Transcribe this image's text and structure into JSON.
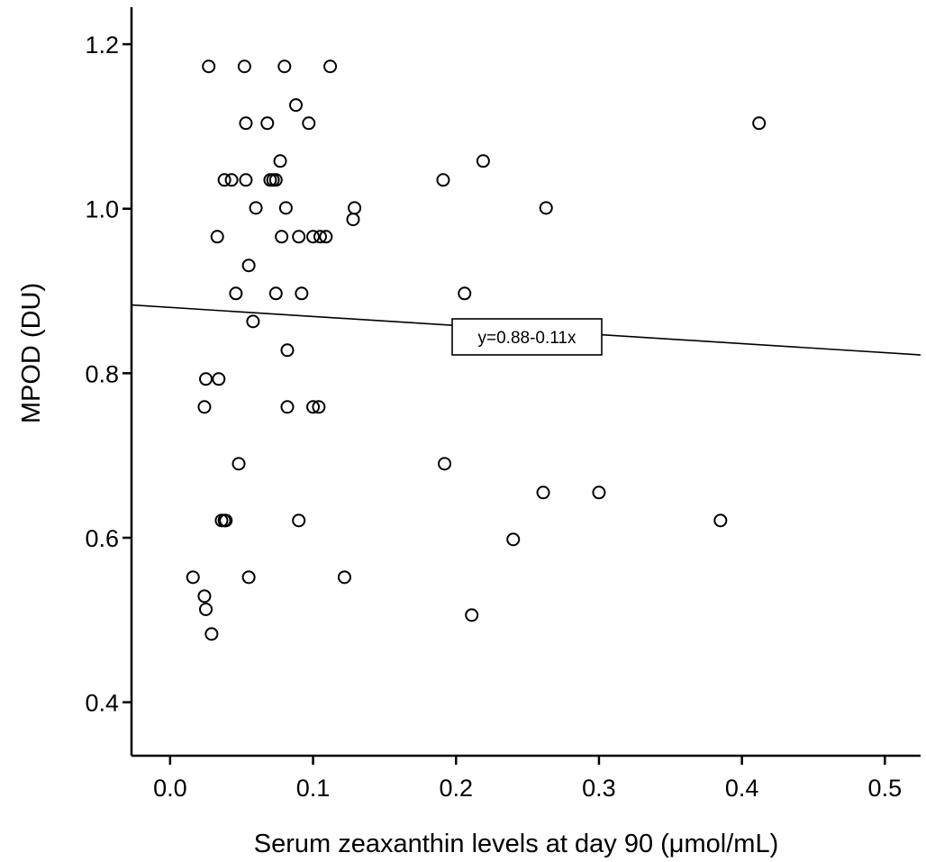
{
  "chart_data": {
    "type": "scatter",
    "title": "",
    "xlabel": "Serum zeaxanthin levels at day 90 (μmol/mL)",
    "ylabel": "MPOD (DU)",
    "xlim": [
      -0.027,
      0.525
    ],
    "ylim": [
      0.335,
      1.245
    ],
    "xticks": [
      0.0,
      0.1,
      0.2,
      0.3,
      0.4,
      0.5
    ],
    "xtick_labels": [
      "0.0",
      "0.1",
      "0.2",
      "0.3",
      "0.4",
      "0.5"
    ],
    "yticks": [
      0.4,
      0.6,
      0.8,
      1.0,
      1.2
    ],
    "ytick_labels": [
      "0.4",
      "0.6",
      "0.8",
      "1.0",
      "1.2"
    ],
    "grid": false,
    "legend": "none",
    "regression": {
      "label": "y=0.88-0.11x",
      "intercept": 0.88,
      "slope": -0.11
    },
    "points": [
      {
        "x": 0.027,
        "y": 1.173
      },
      {
        "x": 0.052,
        "y": 1.173
      },
      {
        "x": 0.08,
        "y": 1.173
      },
      {
        "x": 0.112,
        "y": 1.173
      },
      {
        "x": 0.088,
        "y": 1.126
      },
      {
        "x": 0.053,
        "y": 1.104
      },
      {
        "x": 0.068,
        "y": 1.104
      },
      {
        "x": 0.097,
        "y": 1.104
      },
      {
        "x": 0.412,
        "y": 1.104
      },
      {
        "x": 0.077,
        "y": 1.058
      },
      {
        "x": 0.219,
        "y": 1.058
      },
      {
        "x": 0.038,
        "y": 1.035
      },
      {
        "x": 0.043,
        "y": 1.035
      },
      {
        "x": 0.053,
        "y": 1.035
      },
      {
        "x": 0.07,
        "y": 1.035
      },
      {
        "x": 0.072,
        "y": 1.035
      },
      {
        "x": 0.074,
        "y": 1.035
      },
      {
        "x": 0.191,
        "y": 1.035
      },
      {
        "x": 0.06,
        "y": 1.001
      },
      {
        "x": 0.081,
        "y": 1.001
      },
      {
        "x": 0.129,
        "y": 1.001
      },
      {
        "x": 0.263,
        "y": 1.001
      },
      {
        "x": 0.128,
        "y": 0.987
      },
      {
        "x": 0.033,
        "y": 0.966
      },
      {
        "x": 0.078,
        "y": 0.966
      },
      {
        "x": 0.09,
        "y": 0.966
      },
      {
        "x": 0.1,
        "y": 0.966
      },
      {
        "x": 0.105,
        "y": 0.966
      },
      {
        "x": 0.109,
        "y": 0.966
      },
      {
        "x": 0.055,
        "y": 0.931
      },
      {
        "x": 0.046,
        "y": 0.897
      },
      {
        "x": 0.074,
        "y": 0.897
      },
      {
        "x": 0.092,
        "y": 0.897
      },
      {
        "x": 0.206,
        "y": 0.897
      },
      {
        "x": 0.058,
        "y": 0.863
      },
      {
        "x": 0.082,
        "y": 0.828
      },
      {
        "x": 0.025,
        "y": 0.793
      },
      {
        "x": 0.034,
        "y": 0.793
      },
      {
        "x": 0.024,
        "y": 0.759
      },
      {
        "x": 0.082,
        "y": 0.759
      },
      {
        "x": 0.1,
        "y": 0.759
      },
      {
        "x": 0.104,
        "y": 0.759
      },
      {
        "x": 0.048,
        "y": 0.69
      },
      {
        "x": 0.192,
        "y": 0.69
      },
      {
        "x": 0.261,
        "y": 0.655
      },
      {
        "x": 0.3,
        "y": 0.655
      },
      {
        "x": 0.036,
        "y": 0.621
      },
      {
        "x": 0.038,
        "y": 0.621
      },
      {
        "x": 0.039,
        "y": 0.621
      },
      {
        "x": 0.09,
        "y": 0.621
      },
      {
        "x": 0.385,
        "y": 0.621
      },
      {
        "x": 0.24,
        "y": 0.598
      },
      {
        "x": 0.016,
        "y": 0.552
      },
      {
        "x": 0.055,
        "y": 0.552
      },
      {
        "x": 0.122,
        "y": 0.552
      },
      {
        "x": 0.024,
        "y": 0.529
      },
      {
        "x": 0.025,
        "y": 0.513
      },
      {
        "x": 0.211,
        "y": 0.506
      },
      {
        "x": 0.029,
        "y": 0.483
      }
    ]
  }
}
